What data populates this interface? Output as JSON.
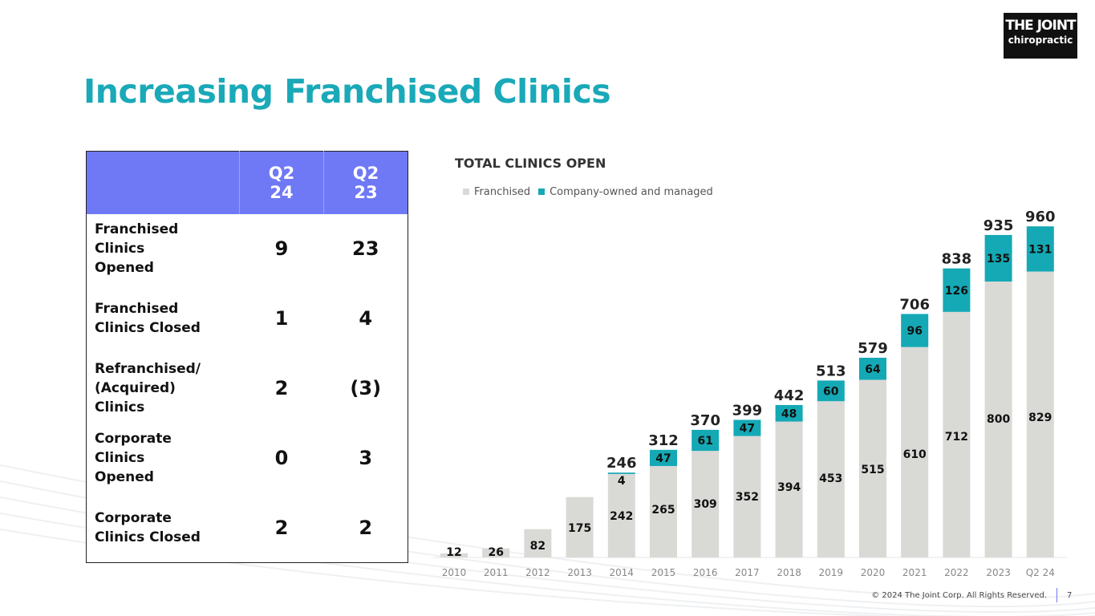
{
  "title": "Increasing Franchised Clinics",
  "logo": {
    "line1": "THE JOINT",
    "line2": "chiropractic"
  },
  "table": {
    "headers": [
      "",
      "Q2 24",
      "Q2 23"
    ],
    "rows": [
      {
        "label": "Franchised Clinics Opened",
        "q2_24": "9",
        "q2_23": "23"
      },
      {
        "label": "Franchised Clinics Closed",
        "q2_24": "1",
        "q2_23": "4"
      },
      {
        "label": "Refranchised/ (Acquired) Clinics",
        "q2_24": "2",
        "q2_23": "(3)"
      },
      {
        "label": "Corporate Clinics Opened",
        "q2_24": "0",
        "q2_23": "3"
      },
      {
        "label": "Corporate Clinics Closed",
        "q2_24": "2",
        "q2_23": "2"
      }
    ]
  },
  "chart_data": {
    "type": "bar",
    "stacked": true,
    "title": "TOTAL CLINICS OPEN",
    "legend_position": "top-left",
    "categories": [
      "2010",
      "2011",
      "2012",
      "2013",
      "2014",
      "2015",
      "2016",
      "2017",
      "2018",
      "2019",
      "2020",
      "2021",
      "2022",
      "2023",
      "Q2 24"
    ],
    "series": [
      {
        "name": "Franchised",
        "color": "#d9d9d6",
        "values": [
          12,
          26,
          82,
          175,
          242,
          265,
          309,
          352,
          394,
          453,
          515,
          610,
          712,
          800,
          829
        ]
      },
      {
        "name": "Company-owned and managed",
        "color": "#14a9b5",
        "values": [
          0,
          0,
          0,
          0,
          4,
          47,
          61,
          47,
          48,
          60,
          64,
          96,
          126,
          135,
          131
        ]
      }
    ],
    "totals": [
      null,
      null,
      null,
      null,
      246,
      312,
      370,
      399,
      442,
      513,
      579,
      706,
      838,
      935,
      960
    ],
    "ylim": [
      0,
      1000
    ],
    "grid": false
  },
  "footer": {
    "copyright": "© 2024 The Joint Corp. All Rights Reserved.",
    "page": "7"
  }
}
